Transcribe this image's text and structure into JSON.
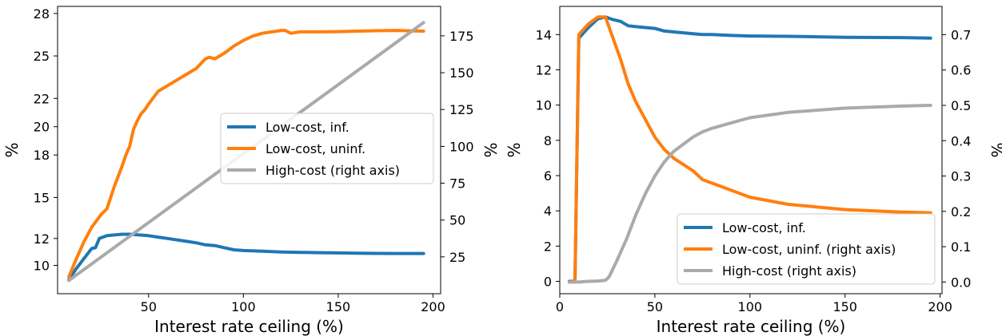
{
  "chart_data": [
    {
      "type": "line",
      "xlabel": "Interest rate ceiling (%)",
      "ylabel": "%",
      "ylabel_right": "%",
      "xlim": [
        2,
        204
      ],
      "ylim": [
        8.0,
        28.3
      ],
      "ylim_right": [
        0,
        195
      ],
      "xticks": [
        50,
        100,
        150,
        200
      ],
      "xtick_labels": [
        "50",
        "100",
        "150",
        "200"
      ],
      "yticks": [
        10,
        11.9,
        13.8,
        15.8,
        17.8,
        19.8,
        21.8,
        23.8,
        25.8,
        27.8
      ],
      "ytick_labels": [
        "10",
        "12",
        "15",
        "18",
        "20",
        "22",
        "25",
        "28"
      ],
      "ytick_positions": [
        10,
        11.9,
        14.8,
        17.8,
        19.8,
        21.8,
        24.8,
        27.8
      ],
      "yticks_right": [
        25,
        50,
        75,
        100,
        125,
        150,
        175
      ],
      "ytick_labels_right": [
        "25",
        "50",
        "75",
        "100",
        "125",
        "150",
        "175"
      ],
      "grid": false,
      "legend": {
        "placement": "center-right"
      },
      "series": [
        {
          "name": "Low-cost, inf.",
          "color": "#1f77b4",
          "axis": "left",
          "x": [
            8,
            12,
            16,
            20,
            22,
            24,
            28,
            32,
            36,
            40,
            45,
            50,
            55,
            60,
            70,
            75,
            80,
            85,
            90,
            95,
            100,
            110,
            120,
            130,
            140,
            150,
            160,
            170,
            180,
            195
          ],
          "y": [
            9.0,
            9.8,
            10.5,
            11.2,
            11.25,
            11.9,
            12.1,
            12.15,
            12.2,
            12.2,
            12.15,
            12.1,
            12.0,
            11.9,
            11.7,
            11.6,
            11.45,
            11.4,
            11.25,
            11.1,
            11.05,
            11.0,
            10.95,
            10.92,
            10.9,
            10.88,
            10.86,
            10.85,
            10.84,
            10.84
          ]
        },
        {
          "name": "Low-cost, uninf.",
          "color": "#ff7f0e",
          "axis": "left",
          "x": [
            8,
            12,
            16,
            20,
            25,
            28,
            32,
            36,
            38,
            40,
            42,
            44,
            46,
            48,
            50,
            55,
            60,
            70,
            75,
            80,
            82,
            85,
            90,
            95,
            100,
            105,
            110,
            120,
            122,
            125,
            130,
            140,
            150,
            160,
            170,
            180,
            195
          ],
          "y": [
            9.2,
            10.5,
            11.7,
            12.7,
            13.6,
            14.0,
            15.6,
            17.0,
            17.8,
            18.4,
            19.6,
            20.2,
            20.7,
            21.0,
            21.4,
            22.3,
            22.7,
            23.5,
            23.9,
            24.6,
            24.7,
            24.6,
            25.0,
            25.5,
            25.9,
            26.2,
            26.4,
            26.6,
            26.6,
            26.4,
            26.5,
            26.5,
            26.52,
            26.55,
            26.58,
            26.6,
            26.55
          ]
        },
        {
          "name": "High-cost (right axis)",
          "color": "#aaaaaa",
          "axis": "right",
          "x": [
            8,
            195
          ],
          "y": [
            9,
            184
          ]
        }
      ]
    },
    {
      "type": "line",
      "xlabel": "Interest rate ceiling (%)",
      "ylabel": "%",
      "ylabel_right": "%",
      "xlim": [
        0,
        201
      ],
      "ylim": [
        -0.7,
        15.6
      ],
      "ylim_right": [
        -0.033,
        0.78
      ],
      "xticks": [
        0,
        50,
        100,
        150,
        200
      ],
      "xtick_labels": [
        "0",
        "50",
        "100",
        "150",
        "200"
      ],
      "yticks": [
        0,
        2,
        4,
        6,
        8,
        10,
        12,
        14
      ],
      "ytick_labels": [
        "0",
        "2",
        "4",
        "6",
        "8",
        "10",
        "12",
        "14"
      ],
      "yticks_right": [
        0.0,
        0.1,
        0.2,
        0.3,
        0.4,
        0.5,
        0.6,
        0.7
      ],
      "ytick_labels_right": [
        "0.0",
        "0.1",
        "0.2",
        "0.3",
        "0.4",
        "0.5",
        "0.6",
        "0.7"
      ],
      "grid": false,
      "legend": {
        "placement": "lower-right"
      },
      "series": [
        {
          "name": "Low-cost, inf.",
          "color": "#1f77b4",
          "axis": "left",
          "x": [
            5,
            8,
            10,
            15,
            20,
            24,
            28,
            32,
            36,
            40,
            45,
            50,
            55,
            60,
            70,
            75,
            80,
            90,
            100,
            120,
            150,
            180,
            195
          ],
          "y": [
            0,
            0,
            13.8,
            14.4,
            14.9,
            15.0,
            14.85,
            14.75,
            14.5,
            14.45,
            14.4,
            14.35,
            14.2,
            14.15,
            14.05,
            14.0,
            14.0,
            13.95,
            13.92,
            13.9,
            13.85,
            13.83,
            13.8
          ]
        },
        {
          "name": "Low-cost, uninf. (right axis)",
          "color": "#ff7f0e",
          "axis": "right",
          "x": [
            5,
            8,
            10,
            15,
            20,
            24,
            28,
            32,
            36,
            40,
            45,
            50,
            55,
            60,
            70,
            75,
            80,
            90,
            100,
            120,
            150,
            180,
            195
          ],
          "y": [
            0,
            0,
            0.7,
            0.73,
            0.75,
            0.75,
            0.69,
            0.63,
            0.56,
            0.51,
            0.46,
            0.41,
            0.375,
            0.35,
            0.315,
            0.29,
            0.28,
            0.26,
            0.24,
            0.22,
            0.205,
            0.198,
            0.196
          ]
        },
        {
          "name": "High-cost (right axis)",
          "color": "#aaaaaa",
          "axis": "right",
          "x": [
            5,
            10,
            15,
            20,
            24,
            26,
            30,
            35,
            40,
            45,
            50,
            55,
            60,
            70,
            75,
            80,
            90,
            100,
            120,
            150,
            180,
            195
          ],
          "y": [
            0,
            0,
            0.002,
            0.003,
            0.005,
            0.015,
            0.06,
            0.12,
            0.19,
            0.25,
            0.3,
            0.34,
            0.37,
            0.41,
            0.425,
            0.435,
            0.45,
            0.465,
            0.48,
            0.492,
            0.498,
            0.5
          ]
        }
      ]
    }
  ]
}
